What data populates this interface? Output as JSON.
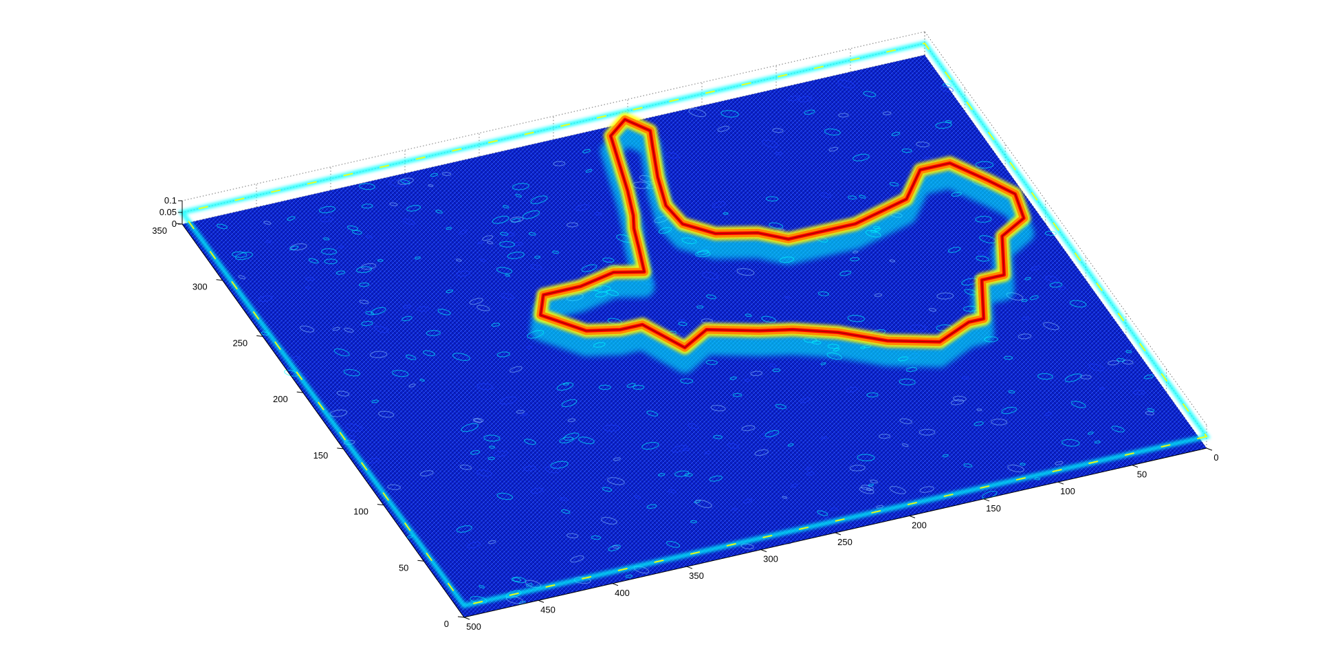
{
  "chart_data": {
    "type": "surface",
    "title": "",
    "xlabel": "",
    "ylabel": "",
    "zlabel": "",
    "colormap": "jet",
    "colormap_colors": [
      "#00008f",
      "#0000ff",
      "#00ffff",
      "#ffff00",
      "#ff0000",
      "#800000"
    ],
    "grid": true,
    "x_axis": {
      "range": [
        0,
        500
      ],
      "ticks": [
        0,
        50,
        100,
        150,
        200,
        250,
        300,
        350,
        400,
        450,
        500
      ]
    },
    "y_axis": {
      "range": [
        0,
        350
      ],
      "ticks": [
        0,
        50,
        100,
        150,
        200,
        250,
        300,
        350
      ]
    },
    "z_axis": {
      "range": [
        0,
        0.1
      ],
      "ticks": [
        0,
        0.05,
        0.1
      ]
    },
    "x_tick_labels": [
      "0",
      "50",
      "100",
      "150",
      "200",
      "250",
      "300",
      "350",
      "400",
      "450",
      "500"
    ],
    "y_tick_labels": [
      "0",
      "50",
      "100",
      "150",
      "200",
      "250",
      "300",
      "350"
    ],
    "z_tick_labels": [
      "0",
      "0.05",
      "0.1"
    ],
    "surface_description_values": {
      "background_level": 0.01,
      "edge_ridge_level": 0.1,
      "border_level": 0.05
    },
    "airplane_outline": [
      [
        20,
        190
      ],
      [
        40,
        180
      ],
      [
        55,
        150
      ],
      [
        70,
        150
      ],
      [
        85,
        120
      ],
      [
        95,
        120
      ],
      [
        120,
        110
      ],
      [
        150,
        120
      ],
      [
        175,
        135
      ],
      [
        200,
        145
      ],
      [
        220,
        150
      ],
      [
        250,
        160
      ],
      [
        270,
        150
      ],
      [
        285,
        175
      ],
      [
        300,
        175
      ],
      [
        320,
        180
      ],
      [
        340,
        200
      ],
      [
        330,
        215
      ],
      [
        305,
        215
      ],
      [
        280,
        220
      ],
      [
        262,
        215
      ],
      [
        255,
        235
      ],
      [
        250,
        250
      ],
      [
        245,
        260
      ],
      [
        238,
        280
      ],
      [
        225,
        325
      ],
      [
        210,
        335
      ],
      [
        200,
        322
      ],
      [
        205,
        310
      ],
      [
        215,
        285
      ],
      [
        222,
        262
      ],
      [
        220,
        245
      ],
      [
        205,
        232
      ],
      [
        180,
        225
      ],
      [
        165,
        215
      ],
      [
        150,
        215
      ],
      [
        120,
        215
      ],
      [
        100,
        220
      ],
      [
        80,
        225
      ],
      [
        60,
        245
      ],
      [
        40,
        245
      ],
      [
        25,
        225
      ],
      [
        15,
        210
      ],
      [
        20,
        190
      ]
    ]
  }
}
